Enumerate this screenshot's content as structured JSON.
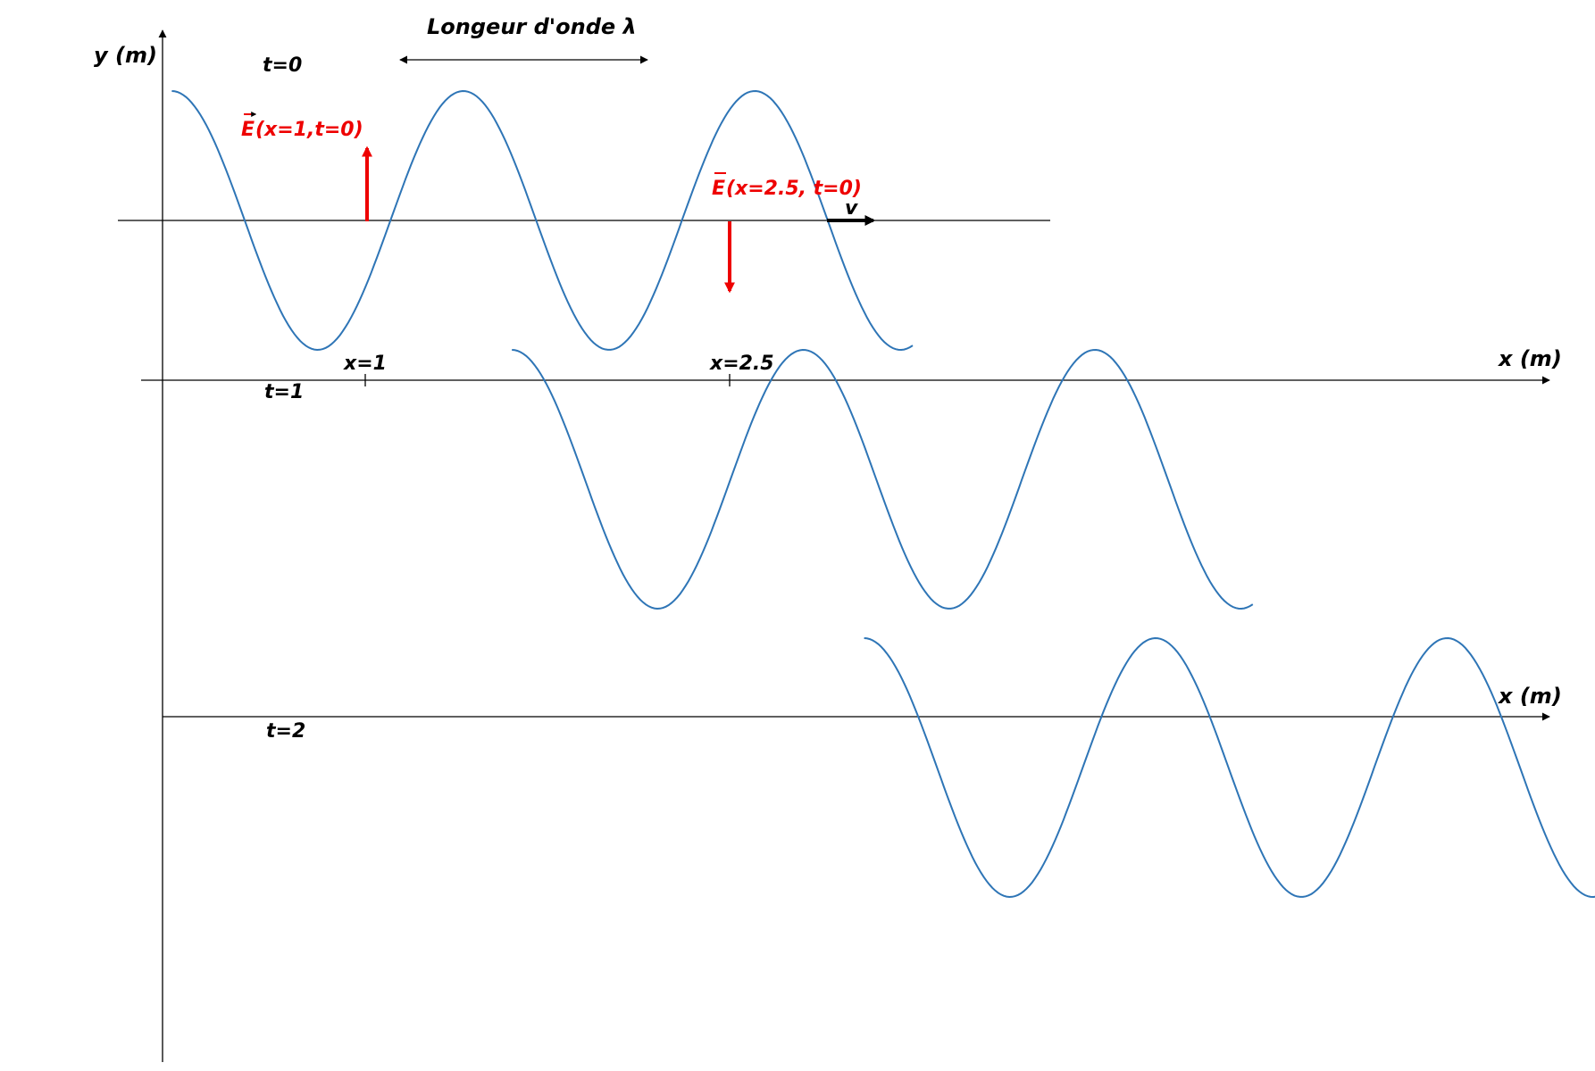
{
  "labels": {
    "y_axis": "y (m)",
    "x_axis": "x (m)",
    "wavelength": "Longeur d'onde  λ",
    "velocity": "v",
    "field_x1": "(x=1,t=0)",
    "field_x25": "(x=2.5, t=0)",
    "field_symbol": "E",
    "tick_x1": "x=1",
    "tick_x25": "x=2.5"
  },
  "panels": [
    {
      "time_label": "t=0",
      "x_start": 0.2,
      "x_end": 3.25,
      "phase_at_start": -0.75
    },
    {
      "time_label": "t=1",
      "x_start": 1.6,
      "x_end": 4.65,
      "phase_at_start": -0.75
    },
    {
      "time_label": "t=2",
      "x_start": 3.05,
      "x_end": 6.1,
      "phase_at_start": -0.75
    }
  ],
  "wave": {
    "wavelength_m": 1.2,
    "amplitude": 1,
    "direction": "+x"
  },
  "vectors": [
    {
      "x": 1.0,
      "direction": "up"
    },
    {
      "x": 2.5,
      "direction": "down"
    }
  ],
  "colors": {
    "wave": "#2e75b6",
    "field_vector": "#ee0000",
    "axis": "#000000"
  }
}
